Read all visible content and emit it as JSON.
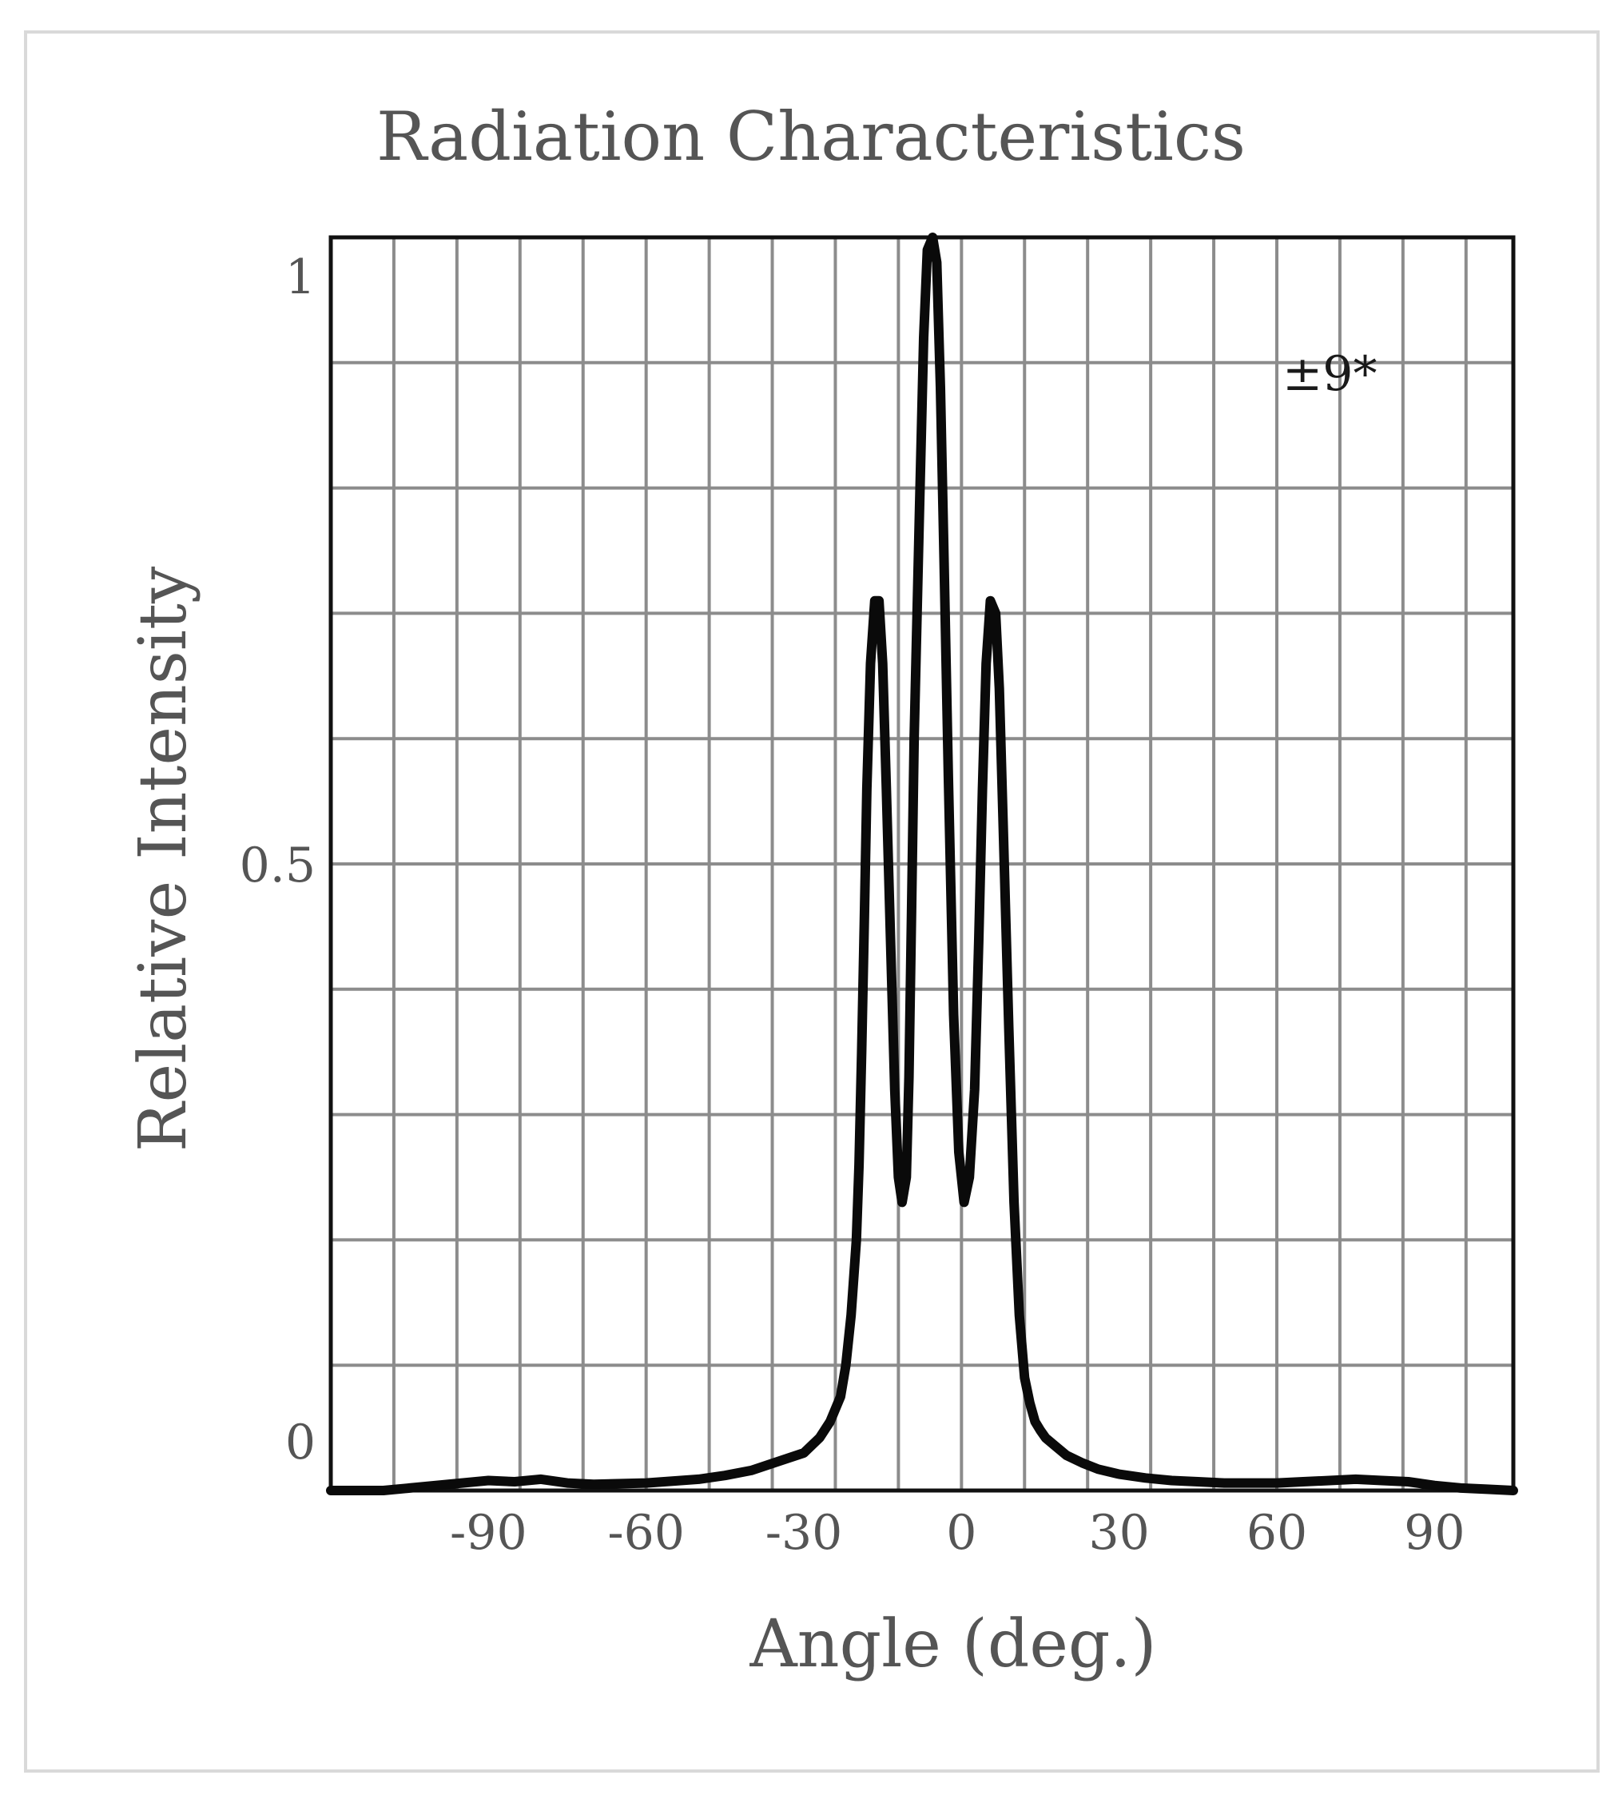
{
  "chart_data": {
    "type": "line",
    "title": "Radiation Characteristics",
    "xlabel": "Angle (deg.)",
    "ylabel": "Relative Intensity",
    "xlim": [
      -120,
      105
    ],
    "ylim": [
      0,
      1
    ],
    "grid": true,
    "x_ticks": [
      -90,
      -60,
      -30,
      0,
      30,
      60,
      90
    ],
    "x_tick_labels": [
      "-90",
      "-60",
      "-30",
      "0",
      "30",
      "60",
      "90"
    ],
    "y_ticks": [
      0,
      0.5,
      1
    ],
    "y_tick_labels": [
      "0",
      "0.5",
      "1"
    ],
    "x_gridlines": [
      -108,
      -96,
      -84,
      -72,
      -60,
      -48,
      -36,
      -24,
      -12,
      0,
      12,
      24,
      36,
      48,
      60,
      72,
      84,
      96
    ],
    "y_gridlines": [
      0.1,
      0.2,
      0.3,
      0.4,
      0.5,
      0.6,
      0.7,
      0.8,
      0.9
    ],
    "annotations": [
      {
        "text": "±9*"
      }
    ],
    "series": [
      {
        "name": "Relative Intensity",
        "x": [
          -120,
          -110,
          -105,
          -100,
          -95,
          -90,
          -85,
          -80,
          -75,
          -70,
          -60,
          -50,
          -45,
          -40,
          -35,
          -30,
          -27,
          -25,
          -23,
          -22,
          -21,
          -20,
          -19.5,
          -19,
          -18.5,
          -18,
          -17.3,
          -16.5,
          -15.7,
          -15,
          -14.3,
          -13.5,
          -12.7,
          -12,
          -11.3,
          -10.5,
          -10,
          -9.5,
          -9,
          -8,
          -7.2,
          -6.5,
          -5.5,
          -4.7,
          -4,
          -3.3,
          -2.5,
          -1.5,
          -0.5,
          0.5,
          1.5,
          2.5,
          3.3,
          4,
          4.7,
          5.5,
          6.5,
          7.2,
          8,
          9,
          10,
          11,
          12,
          13,
          14,
          15,
          16,
          18,
          20,
          23,
          26,
          30,
          35,
          40,
          45,
          50,
          55,
          60,
          65,
          70,
          75,
          80,
          85,
          90,
          95,
          100,
          105
        ],
        "y": [
          0.0,
          0.0,
          0.002,
          0.004,
          0.006,
          0.008,
          0.007,
          0.009,
          0.006,
          0.005,
          0.006,
          0.009,
          0.012,
          0.016,
          0.023,
          0.03,
          0.042,
          0.055,
          0.075,
          0.1,
          0.14,
          0.2,
          0.26,
          0.35,
          0.45,
          0.56,
          0.66,
          0.71,
          0.71,
          0.66,
          0.56,
          0.44,
          0.32,
          0.25,
          0.23,
          0.25,
          0.33,
          0.46,
          0.6,
          0.78,
          0.92,
          0.99,
          1.0,
          0.98,
          0.88,
          0.74,
          0.57,
          0.38,
          0.27,
          0.23,
          0.25,
          0.32,
          0.44,
          0.56,
          0.66,
          0.71,
          0.7,
          0.64,
          0.52,
          0.37,
          0.23,
          0.14,
          0.09,
          0.07,
          0.055,
          0.048,
          0.042,
          0.035,
          0.028,
          0.022,
          0.017,
          0.013,
          0.01,
          0.008,
          0.007,
          0.006,
          0.006,
          0.006,
          0.007,
          0.008,
          0.009,
          0.008,
          0.007,
          0.004,
          0.002,
          0.001,
          0.0
        ]
      }
    ]
  }
}
